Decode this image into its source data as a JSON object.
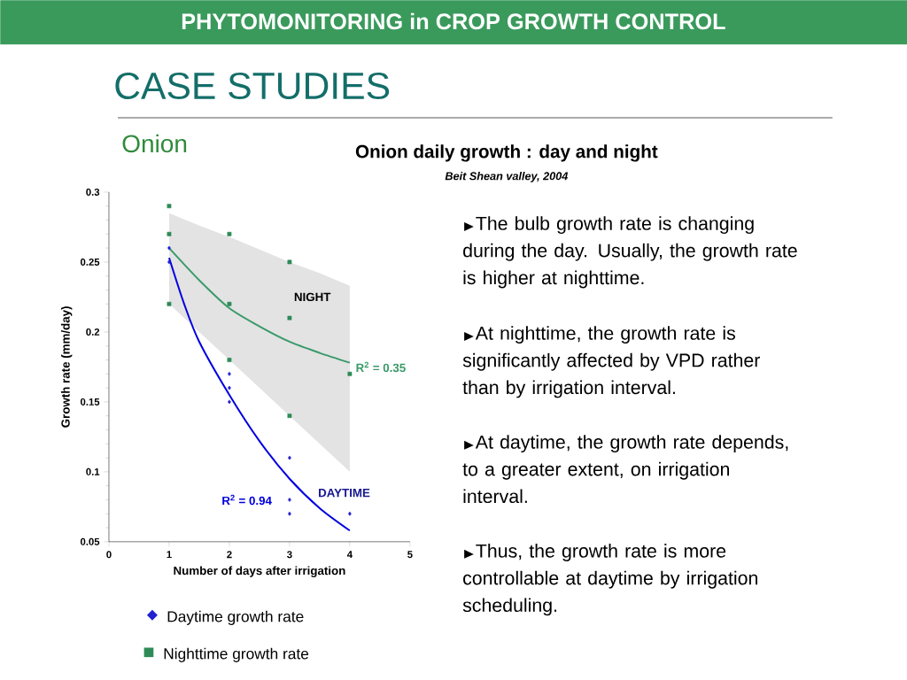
{
  "chart_data": {
    "type": "scatter",
    "title": "Onion daily growth : day and night",
    "subtitle": "Beit Shean valley, 2004",
    "xlabel": "Number of days after irrigation",
    "ylabel": "Growth rate (mm/day)",
    "xlim": [
      0,
      5
    ],
    "ylim": [
      0.05,
      0.3
    ],
    "xticks": [
      0,
      1,
      2,
      3,
      4,
      5
    ],
    "yticks": [
      0.05,
      0.1,
      0.15,
      0.2,
      0.25,
      0.3
    ],
    "grid": false,
    "legend": "bottom",
    "series": [
      {
        "name": "Daytime growth rate",
        "marker": "diamond",
        "color": "#2020d0",
        "x": [
          1,
          1,
          2,
          2,
          2,
          3,
          3,
          3,
          4
        ],
        "values": [
          0.26,
          0.25,
          0.17,
          0.16,
          0.15,
          0.11,
          0.08,
          0.07,
          0.07
        ]
      },
      {
        "name": "Nighttime growth rate",
        "marker": "square",
        "color": "#2e8b57",
        "x": [
          1,
          1,
          1,
          2,
          2,
          2,
          3,
          3,
          3,
          4
        ],
        "values": [
          0.29,
          0.27,
          0.22,
          0.27,
          0.22,
          0.18,
          0.25,
          0.21,
          0.14,
          0.17
        ]
      },
      {
        "type": "line",
        "color": "#0000e0",
        "x": [
          1,
          1.25,
          1.5,
          2,
          2.5,
          3,
          3.5,
          4
        ],
        "values": [
          0.253,
          0.22,
          0.193,
          0.155,
          0.122,
          0.095,
          0.074,
          0.058
        ]
      },
      {
        "type": "line",
        "color": "#3a9a6a",
        "x": [
          1,
          1.5,
          2,
          2.5,
          3,
          3.5,
          4
        ],
        "values": [
          0.26,
          0.237,
          0.217,
          0.204,
          0.193,
          0.185,
          0.178
        ],
        "lower": [
          0.22,
          0.2,
          0.18,
          0.16,
          0.14,
          0.12,
          0.1
        ],
        "upper": [
          0.285,
          0.276,
          0.268,
          0.259,
          0.25,
          0.242,
          0.233
        ]
      }
    ],
    "annotations": [
      "PHYTOMONITORING in CROP GROWTH CONTROL",
      "CASE STUDIES",
      "Onion",
      "NIGHT",
      "R$^{2}$ = 0.35",
      "DAYTIME",
      "R$^{2}$ = 0.94",
      "The bulb growth rate is changing during the day. Usually, the growth rate is higher at nighttime.",
      "At nighttime, the growth rate is significantly affected by VPD rather than by irrigation interval.",
      "At daytime, the growth rate depends, to a greater extent, on irrigation interval.",
      "Thus, the growth rate is more controllable at daytime by irrigation scheduling."
    ]
  }
}
